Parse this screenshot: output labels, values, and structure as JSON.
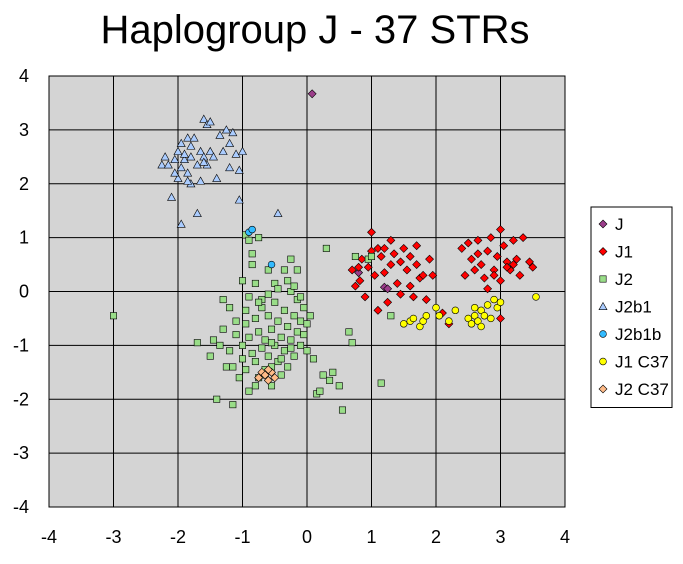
{
  "chart_data": {
    "type": "scatter",
    "title": "Haplogroup J - 37 STRs",
    "xlabel": "",
    "ylabel": "",
    "xlim": [
      -4,
      4
    ],
    "ylim": [
      -4,
      4
    ],
    "xticks": [
      -4,
      -3,
      -2,
      -1,
      0,
      1,
      2,
      3,
      4
    ],
    "yticks": [
      4,
      3,
      2,
      1,
      0,
      -1,
      -2,
      -3,
      -4
    ],
    "grid": true,
    "plot_background": "#d4d4d4",
    "legend_position": "right",
    "series": [
      {
        "name": "J",
        "marker": "diamond",
        "color": "#9b3d8a",
        "points": [
          [
            0.08,
            3.67
          ],
          [
            0.8,
            0.35
          ],
          [
            1.2,
            0.08
          ],
          [
            1.25,
            0.05
          ]
        ]
      },
      {
        "name": "J1",
        "marker": "diamond",
        "color": "#ff0000",
        "points": [
          [
            0.7,
            0.4
          ],
          [
            0.75,
            0.1
          ],
          [
            0.8,
            0.45
          ],
          [
            0.82,
            0.2
          ],
          [
            0.85,
            0.6
          ],
          [
            0.9,
            -0.1
          ],
          [
            0.95,
            0.45
          ],
          [
            1.0,
            1.1
          ],
          [
            1.0,
            0.75
          ],
          [
            1.05,
            0.3
          ],
          [
            1.1,
            0.8
          ],
          [
            1.1,
            -0.35
          ],
          [
            1.15,
            0.65
          ],
          [
            1.2,
            0.8
          ],
          [
            1.2,
            0.35
          ],
          [
            1.25,
            -0.2
          ],
          [
            1.3,
            0.5
          ],
          [
            1.3,
            0.95
          ],
          [
            1.35,
            0.7
          ],
          [
            1.4,
            0.15
          ],
          [
            1.45,
            0.55
          ],
          [
            1.45,
            -0.05
          ],
          [
            1.5,
            0.8
          ],
          [
            1.55,
            0.4
          ],
          [
            1.6,
            0.1
          ],
          [
            1.6,
            0.65
          ],
          [
            1.65,
            -0.1
          ],
          [
            1.7,
            0.5
          ],
          [
            1.7,
            0.85
          ],
          [
            1.75,
            0.25
          ],
          [
            1.8,
            0.3
          ],
          [
            1.85,
            -0.15
          ],
          [
            1.9,
            0.6
          ],
          [
            1.95,
            0.3
          ],
          [
            2.1,
            -0.4
          ],
          [
            2.2,
            -0.6
          ],
          [
            2.4,
            0.8
          ],
          [
            2.45,
            0.3
          ],
          [
            2.5,
            0.9
          ],
          [
            2.55,
            0.6
          ],
          [
            2.6,
            0.4
          ],
          [
            2.65,
            0.95
          ],
          [
            2.7,
            0.5
          ],
          [
            2.75,
            0.25
          ],
          [
            2.8,
            0.75
          ],
          [
            2.8,
            0.05
          ],
          [
            2.85,
            1.0
          ],
          [
            2.9,
            0.4
          ],
          [
            2.95,
            0.65
          ],
          [
            3.0,
            1.15
          ],
          [
            3.0,
            0.2
          ],
          [
            3.05,
            0.85
          ],
          [
            3.1,
            0.55
          ],
          [
            3.15,
            0.4
          ],
          [
            3.2,
            0.95
          ],
          [
            3.25,
            0.6
          ],
          [
            3.3,
            0.3
          ],
          [
            3.35,
            1.0
          ],
          [
            3.45,
            0.55
          ],
          [
            3.5,
            0.45
          ],
          [
            3.0,
            -0.5
          ],
          [
            2.65,
            0.7
          ],
          [
            3.1,
            0.45
          ],
          [
            2.9,
            0.3
          ],
          [
            3.2,
            0.5
          ]
        ]
      },
      {
        "name": "J2",
        "marker": "square",
        "color": "#99dd88",
        "points": [
          [
            -3.0,
            -0.45
          ],
          [
            -1.7,
            -0.95
          ],
          [
            -1.5,
            -1.2
          ],
          [
            -1.45,
            -0.9
          ],
          [
            -1.4,
            -2.0
          ],
          [
            -1.35,
            -1.0
          ],
          [
            -1.3,
            -0.7
          ],
          [
            -1.25,
            -1.4
          ],
          [
            -1.2,
            -1.1
          ],
          [
            -1.15,
            -2.1
          ],
          [
            -1.1,
            -0.8
          ],
          [
            -1.05,
            -1.6
          ],
          [
            -1.0,
            -1.0
          ],
          [
            -1.0,
            -1.25
          ],
          [
            -0.95,
            -0.6
          ],
          [
            -0.95,
            -1.45
          ],
          [
            -0.9,
            -0.85
          ],
          [
            -0.9,
            -1.85
          ],
          [
            -0.85,
            -1.15
          ],
          [
            -0.85,
            0.5
          ],
          [
            -0.8,
            -0.5
          ],
          [
            -0.8,
            -1.3
          ],
          [
            -0.75,
            -0.75
          ],
          [
            -0.75,
            -1.6
          ],
          [
            -0.7,
            -1.05
          ],
          [
            -0.7,
            -0.3
          ],
          [
            -0.65,
            -1.45
          ],
          [
            -0.65,
            -0.9
          ],
          [
            -0.6,
            -1.2
          ],
          [
            -0.6,
            -0.45
          ],
          [
            -0.55,
            -1.75
          ],
          [
            -0.55,
            -0.7
          ],
          [
            -0.5,
            -1.0
          ],
          [
            -0.5,
            -0.2
          ],
          [
            -0.45,
            -1.3
          ],
          [
            -0.45,
            -0.55
          ],
          [
            -0.4,
            -0.85
          ],
          [
            -0.4,
            -1.55
          ],
          [
            -0.35,
            -0.35
          ],
          [
            -0.35,
            -1.1
          ],
          [
            -0.3,
            -0.65
          ],
          [
            -0.3,
            -1.4
          ],
          [
            -0.25,
            -0.9
          ],
          [
            -0.25,
            0.0
          ],
          [
            -0.2,
            -0.45
          ],
          [
            -0.2,
            -1.2
          ],
          [
            -0.15,
            -0.75
          ],
          [
            -0.15,
            -0.15
          ],
          [
            -0.1,
            -0.55
          ],
          [
            -0.1,
            -1.0
          ],
          [
            -0.05,
            -0.3
          ],
          [
            -0.05,
            -0.8
          ],
          [
            0.0,
            -0.6
          ],
          [
            0.0,
            -1.1
          ],
          [
            0.05,
            -0.45
          ],
          [
            0.1,
            -1.25
          ],
          [
            0.15,
            -1.9
          ],
          [
            0.2,
            -1.85
          ],
          [
            0.25,
            -1.55
          ],
          [
            0.3,
            0.8
          ],
          [
            0.35,
            -1.65
          ],
          [
            0.4,
            -1.5
          ],
          [
            0.5,
            -1.75
          ],
          [
            0.55,
            -2.2
          ],
          [
            0.65,
            -0.75
          ],
          [
            0.7,
            -0.95
          ],
          [
            0.75,
            0.65
          ],
          [
            0.95,
            0.6
          ],
          [
            1.0,
            0.65
          ],
          [
            1.15,
            -1.7
          ],
          [
            1.3,
            -0.45
          ],
          [
            -0.95,
            1.05
          ],
          [
            -0.9,
            0.95
          ],
          [
            -0.85,
            0.7
          ],
          [
            -0.75,
            1.0
          ],
          [
            -0.6,
            0.4
          ],
          [
            -0.5,
            0.15
          ],
          [
            -0.35,
            0.4
          ],
          [
            -0.25,
            0.6
          ],
          [
            -0.15,
            0.4
          ],
          [
            -1.0,
            0.2
          ],
          [
            -0.9,
            -0.1
          ],
          [
            -0.8,
            0.15
          ],
          [
            -0.7,
            -0.15
          ],
          [
            -0.6,
            -0.05
          ],
          [
            -0.45,
            0.05
          ],
          [
            -0.3,
            0.2
          ],
          [
            -0.1,
            -0.1
          ],
          [
            -1.2,
            -0.3
          ],
          [
            -1.1,
            -0.55
          ],
          [
            -1.3,
            -0.15
          ],
          [
            -0.95,
            -0.35
          ],
          [
            -0.55,
            -0.95
          ],
          [
            -0.25,
            -1.05
          ],
          [
            -0.4,
            -1.25
          ],
          [
            -0.65,
            -1.55
          ],
          [
            -0.8,
            -1.75
          ],
          [
            -0.55,
            -1.4
          ],
          [
            -1.15,
            -1.4
          ],
          [
            -0.75,
            -0.2
          ],
          [
            -0.2,
            0.1
          ]
        ]
      },
      {
        "name": "J2b1",
        "marker": "triangle",
        "color": "#aaccff",
        "points": [
          [
            -2.25,
            2.35
          ],
          [
            -2.2,
            2.5
          ],
          [
            -2.15,
            2.35
          ],
          [
            -2.1,
            1.75
          ],
          [
            -2.05,
            2.45
          ],
          [
            -2.0,
            2.6
          ],
          [
            -2.0,
            2.1
          ],
          [
            -1.95,
            2.75
          ],
          [
            -1.95,
            2.3
          ],
          [
            -1.95,
            1.25
          ],
          [
            -1.9,
            2.45
          ],
          [
            -1.85,
            2.85
          ],
          [
            -1.85,
            2.2
          ],
          [
            -1.8,
            2.7
          ],
          [
            -1.8,
            2.5
          ],
          [
            -1.8,
            2.0
          ],
          [
            -1.75,
            2.85
          ],
          [
            -1.7,
            2.35
          ],
          [
            -1.7,
            1.45
          ],
          [
            -1.65,
            2.6
          ],
          [
            -1.65,
            2.05
          ],
          [
            -1.6,
            3.2
          ],
          [
            -1.6,
            2.5
          ],
          [
            -1.55,
            3.1
          ],
          [
            -1.55,
            2.35
          ],
          [
            -1.5,
            3.15
          ],
          [
            -1.5,
            2.6
          ],
          [
            -1.45,
            2.5
          ],
          [
            -1.4,
            2.1
          ],
          [
            -1.35,
            2.9
          ],
          [
            -1.3,
            2.6
          ],
          [
            -1.25,
            3.0
          ],
          [
            -1.2,
            2.75
          ],
          [
            -1.2,
            2.3
          ],
          [
            -1.15,
            2.95
          ],
          [
            -1.1,
            2.55
          ],
          [
            -1.05,
            2.25
          ],
          [
            -1.05,
            1.7
          ],
          [
            -1.0,
            2.6
          ],
          [
            -0.45,
            1.45
          ],
          [
            -1.85,
            2.05
          ],
          [
            -2.05,
            2.2
          ],
          [
            -1.9,
            2.55
          ],
          [
            -1.6,
            2.4
          ]
        ]
      },
      {
        "name": "J2b1b",
        "marker": "circle",
        "color": "#33bbff",
        "points": [
          [
            -0.9,
            1.1
          ],
          [
            -0.85,
            1.15
          ],
          [
            -0.55,
            0.5
          ]
        ]
      },
      {
        "name": "J1 C37",
        "marker": "circle",
        "color": "#ffff00",
        "points": [
          [
            1.5,
            -0.6
          ],
          [
            1.6,
            -0.55
          ],
          [
            1.65,
            -0.5
          ],
          [
            1.75,
            -0.65
          ],
          [
            1.8,
            -0.55
          ],
          [
            1.85,
            -0.45
          ],
          [
            2.0,
            -0.3
          ],
          [
            2.05,
            -0.45
          ],
          [
            2.2,
            -0.55
          ],
          [
            2.3,
            -0.35
          ],
          [
            2.5,
            -0.5
          ],
          [
            2.55,
            -0.6
          ],
          [
            2.6,
            -0.45
          ],
          [
            2.65,
            -0.55
          ],
          [
            2.7,
            -0.65
          ],
          [
            2.7,
            -0.35
          ],
          [
            2.75,
            -0.45
          ],
          [
            2.8,
            -0.25
          ],
          [
            2.85,
            -0.5
          ],
          [
            2.9,
            -0.15
          ],
          [
            2.95,
            -0.3
          ],
          [
            3.0,
            -0.2
          ],
          [
            3.55,
            -0.1
          ],
          [
            2.6,
            -0.3
          ]
        ]
      },
      {
        "name": "J2 C37",
        "marker": "diamond",
        "color": "#ffbb88",
        "points": [
          [
            -0.7,
            -1.5
          ],
          [
            -0.65,
            -1.55
          ],
          [
            -0.6,
            -1.65
          ],
          [
            -0.55,
            -1.5
          ],
          [
            -0.6,
            -1.45
          ],
          [
            -0.75,
            -1.6
          ],
          [
            -0.5,
            -1.6
          ]
        ]
      }
    ]
  }
}
